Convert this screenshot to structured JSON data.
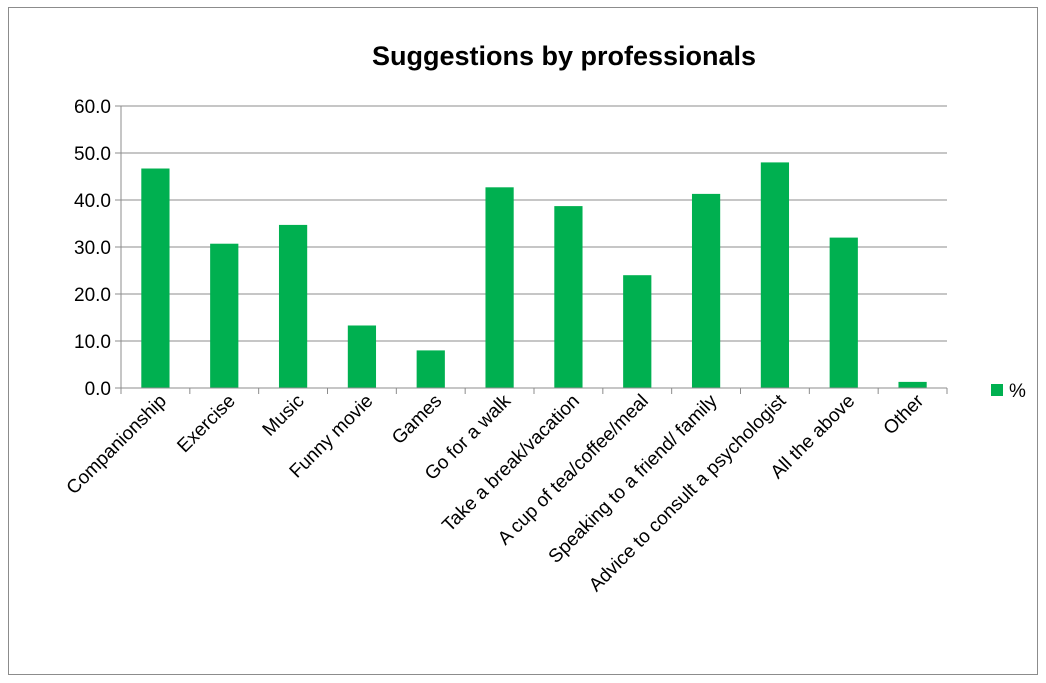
{
  "chart_data": {
    "type": "bar",
    "title": "Suggestions by professionals",
    "xlabel": "",
    "ylabel": "",
    "categories": [
      "Companionship",
      "Exercise",
      "Music",
      "Funny movie",
      "Games",
      "Go for a walk",
      "Take a break/vacation",
      "A cup of tea/coffee/meal",
      "Speaking to a friend/ family",
      "Advice to consult a psychologist",
      "All the above",
      "Other"
    ],
    "series": [
      {
        "name": "%",
        "color": "#00b050",
        "values": [
          46.7,
          30.7,
          34.7,
          13.3,
          8.0,
          42.7,
          38.7,
          24.0,
          41.3,
          48.0,
          32.0,
          1.3
        ]
      }
    ],
    "ylim": [
      0,
      60
    ],
    "yticks": [
      "0.0",
      "10.0",
      "20.0",
      "30.0",
      "40.0",
      "50.0",
      "60.0"
    ],
    "grid": true,
    "legend_position": "right"
  }
}
